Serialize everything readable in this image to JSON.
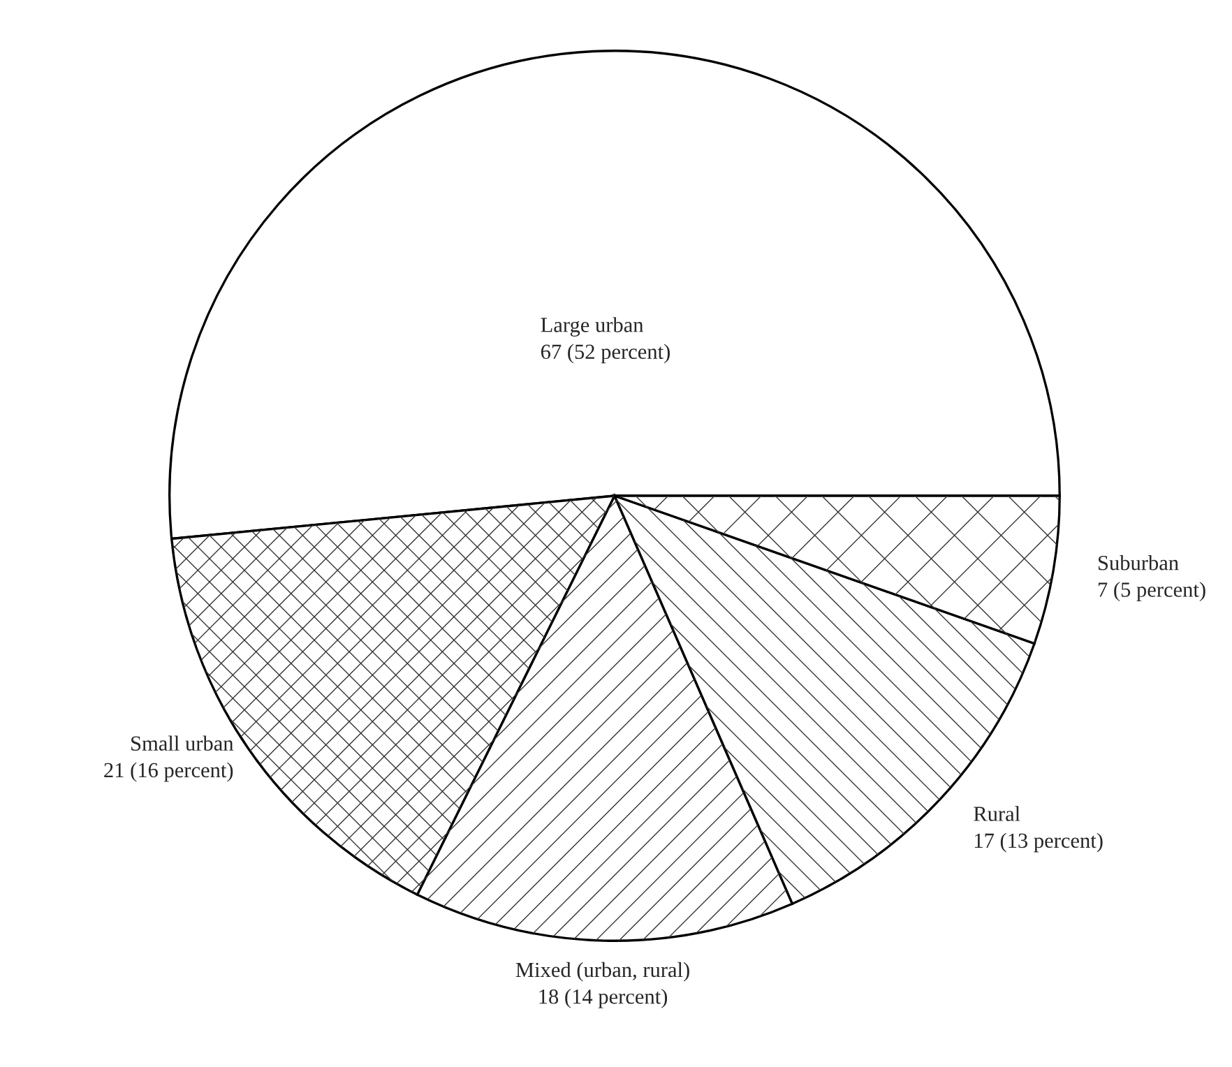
{
  "chart_data": {
    "type": "pie",
    "categories": [
      "Large urban",
      "Small urban",
      "Mixed (urban, rural)",
      "Rural",
      "Suburban"
    ],
    "values": [
      67,
      21,
      18,
      17,
      7
    ],
    "value_labels": [
      "67 (52 percent)",
      "21 (16 percent)",
      "18 (14 percent)",
      "17 (13 percent)",
      "7 (5 percent)"
    ],
    "colors": [
      "#ffffff",
      "#ffffff",
      "#ffffff",
      "#ffffff",
      "#ffffff"
    ]
  }
}
